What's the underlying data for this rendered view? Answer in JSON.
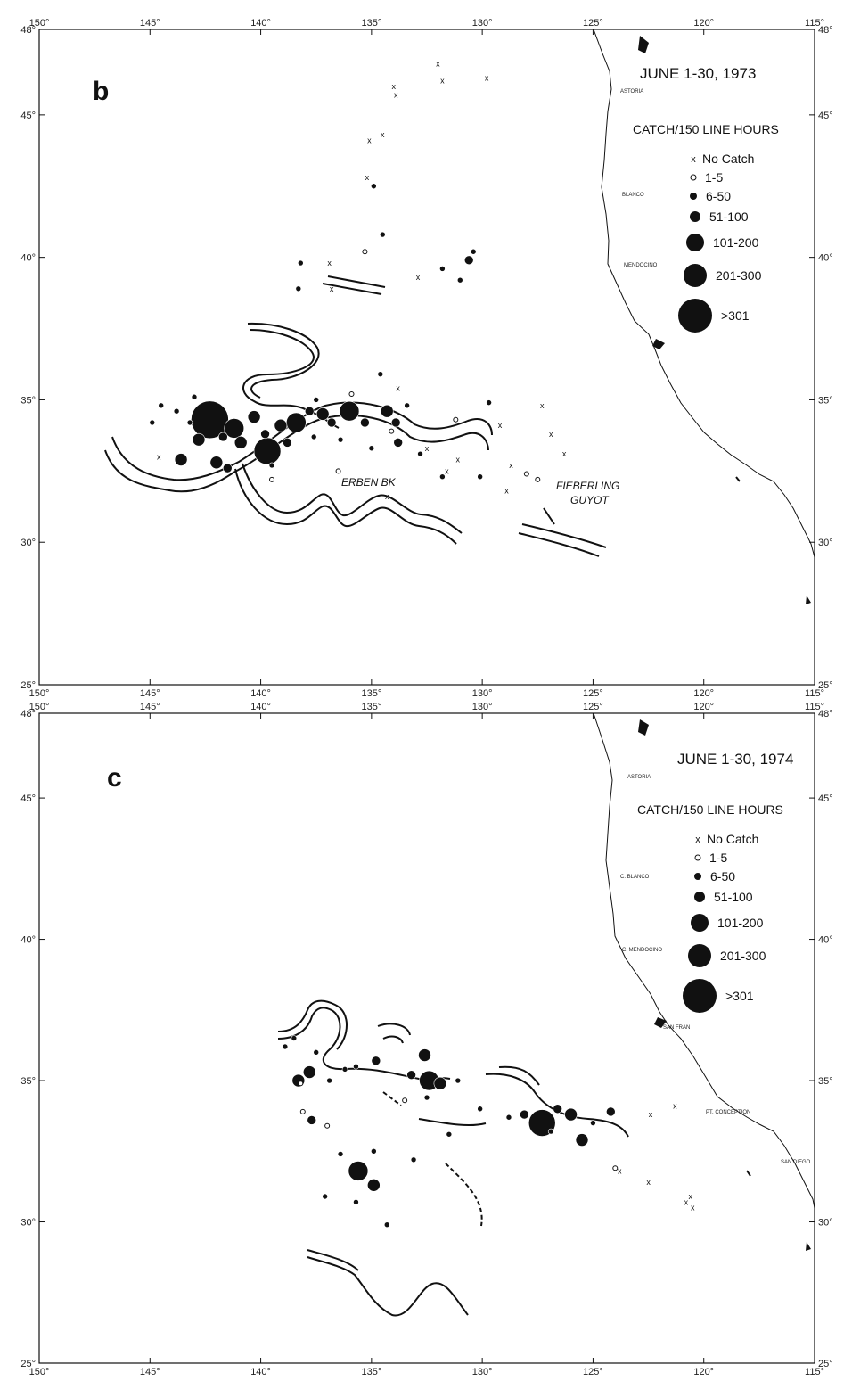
{
  "axes": {
    "lon_labels": [
      "150°",
      "145°",
      "140°",
      "135°",
      "130°",
      "125°",
      "120°",
      "115°"
    ],
    "lat_labels": [
      "25°",
      "30°",
      "35°",
      "40°",
      "45°",
      "48°"
    ]
  },
  "legend": {
    "title": "CATCH/150 LINE HOURS",
    "entries": [
      {
        "label": "No Catch",
        "symbol": "x"
      },
      {
        "label": "1-5",
        "symbol": "open-circle"
      },
      {
        "label": "6-50",
        "symbol": "dot-small"
      },
      {
        "label": "51-100",
        "symbol": "dot-medium"
      },
      {
        "label": "101-200",
        "symbol": "dot-large"
      },
      {
        "label": "201-300",
        "symbol": "dot-xlarge"
      },
      {
        "label": ">301",
        "symbol": "dot-xxlarge"
      }
    ]
  },
  "panels": [
    {
      "id": "b",
      "letter": "b",
      "title": "JUNE 1-30, 1973",
      "coast_labels": [
        "ASTORIA",
        "BLANCO",
        "MENDOCINO"
      ],
      "feature_labels": [
        "ERBEN BK",
        "FIEBERLING",
        "GUYOT"
      ],
      "catches": [
        {
          "lon": -142.3,
          "lat": 34.3,
          "size": 6
        },
        {
          "lon": -139.7,
          "lat": 33.2,
          "size": 5
        },
        {
          "lon": -141.2,
          "lat": 34.0,
          "size": 4
        },
        {
          "lon": -138.4,
          "lat": 34.2,
          "size": 4
        },
        {
          "lon": -136.0,
          "lat": 34.6,
          "size": 4
        },
        {
          "lon": -143.6,
          "lat": 32.9,
          "size": 3
        },
        {
          "lon": -142.8,
          "lat": 33.6,
          "size": 3
        },
        {
          "lon": -140.3,
          "lat": 34.4,
          "size": 3
        },
        {
          "lon": -139.1,
          "lat": 34.1,
          "size": 3
        },
        {
          "lon": -137.2,
          "lat": 34.5,
          "size": 3
        },
        {
          "lon": -134.3,
          "lat": 34.6,
          "size": 3
        },
        {
          "lon": -142.0,
          "lat": 32.8,
          "size": 3
        },
        {
          "lon": -140.9,
          "lat": 33.5,
          "size": 3
        },
        {
          "lon": -141.7,
          "lat": 33.7,
          "size": 2
        },
        {
          "lon": -139.8,
          "lat": 33.8,
          "size": 2
        },
        {
          "lon": -138.8,
          "lat": 33.5,
          "size": 2
        },
        {
          "lon": -137.8,
          "lat": 34.6,
          "size": 2
        },
        {
          "lon": -136.8,
          "lat": 34.2,
          "size": 2
        },
        {
          "lon": -135.3,
          "lat": 34.2,
          "size": 2
        },
        {
          "lon": -133.9,
          "lat": 34.2,
          "size": 2
        },
        {
          "lon": -130.6,
          "lat": 39.9,
          "size": 2
        },
        {
          "lon": -141.5,
          "lat": 32.6,
          "size": 2
        },
        {
          "lon": -133.8,
          "lat": 33.5,
          "size": 2
        },
        {
          "lon": -144.5,
          "lat": 34.8,
          "size": 1
        },
        {
          "lon": -144.9,
          "lat": 34.2,
          "size": 1
        },
        {
          "lon": -143.8,
          "lat": 34.6,
          "size": 1
        },
        {
          "lon": -143.2,
          "lat": 34.2,
          "size": 1
        },
        {
          "lon": -138.2,
          "lat": 39.8,
          "size": 1
        },
        {
          "lon": -138.3,
          "lat": 38.9,
          "size": 1
        },
        {
          "lon": -137.6,
          "lat": 33.7,
          "size": 1
        },
        {
          "lon": -136.4,
          "lat": 33.6,
          "size": 1
        },
        {
          "lon": -135.0,
          "lat": 33.3,
          "size": 1
        },
        {
          "lon": -134.6,
          "lat": 35.9,
          "size": 1
        },
        {
          "lon": -134.5,
          "lat": 40.8,
          "size": 1
        },
        {
          "lon": -134.9,
          "lat": 42.5,
          "size": 1
        },
        {
          "lon": -133.4,
          "lat": 34.8,
          "size": 1
        },
        {
          "lon": -132.8,
          "lat": 33.1,
          "size": 1
        },
        {
          "lon": -131.8,
          "lat": 39.6,
          "size": 1
        },
        {
          "lon": -131.0,
          "lat": 39.2,
          "size": 1
        },
        {
          "lon": -130.4,
          "lat": 40.2,
          "size": 1
        },
        {
          "lon": -130.1,
          "lat": 32.3,
          "size": 1
        },
        {
          "lon": -131.8,
          "lat": 32.3,
          "size": 1
        },
        {
          "lon": -129.7,
          "lat": 34.9,
          "size": 1
        },
        {
          "lon": -139.5,
          "lat": 32.7,
          "size": 1
        },
        {
          "lon": -137.5,
          "lat": 35.0,
          "size": 1
        },
        {
          "lon": -143.0,
          "lat": 35.1,
          "size": 1
        },
        {
          "lon": -136.5,
          "lat": 32.5,
          "size": 0
        },
        {
          "lon": -139.5,
          "lat": 32.2,
          "size": 0
        },
        {
          "lon": -135.9,
          "lat": 35.2,
          "size": 0
        },
        {
          "lon": -134.1,
          "lat": 33.9,
          "size": 0
        },
        {
          "lon": -135.3,
          "lat": 40.2,
          "size": 0
        },
        {
          "lon": -131.2,
          "lat": 34.3,
          "size": 0
        },
        {
          "lon": -128.0,
          "lat": 32.4,
          "size": 0
        },
        {
          "lon": -127.5,
          "lat": 32.2,
          "size": 0
        },
        {
          "lon": -132.0,
          "lat": 46.8,
          "size": -1
        },
        {
          "lon": -131.8,
          "lat": 46.2,
          "size": -1
        },
        {
          "lon": -129.8,
          "lat": 46.3,
          "size": -1
        },
        {
          "lon": -134.0,
          "lat": 46.0,
          "size": -1
        },
        {
          "lon": -133.9,
          "lat": 45.7,
          "size": -1
        },
        {
          "lon": -134.5,
          "lat": 44.3,
          "size": -1
        },
        {
          "lon": -135.1,
          "lat": 44.1,
          "size": -1
        },
        {
          "lon": -135.2,
          "lat": 42.8,
          "size": -1
        },
        {
          "lon": -136.9,
          "lat": 39.8,
          "size": -1
        },
        {
          "lon": -136.8,
          "lat": 38.9,
          "size": -1
        },
        {
          "lon": -132.9,
          "lat": 39.3,
          "size": -1
        },
        {
          "lon": -133.8,
          "lat": 35.4,
          "size": -1
        },
        {
          "lon": -131.1,
          "lat": 32.9,
          "size": -1
        },
        {
          "lon": -131.6,
          "lat": 32.5,
          "size": -1
        },
        {
          "lon": -134.3,
          "lat": 31.6,
          "size": -1
        },
        {
          "lon": -129.2,
          "lat": 34.1,
          "size": -1
        },
        {
          "lon": -128.7,
          "lat": 32.7,
          "size": -1
        },
        {
          "lon": -128.9,
          "lat": 31.8,
          "size": -1
        },
        {
          "lon": -127.3,
          "lat": 34.8,
          "size": -1
        },
        {
          "lon": -126.9,
          "lat": 33.8,
          "size": -1
        },
        {
          "lon": -126.3,
          "lat": 33.1,
          "size": -1
        },
        {
          "lon": -144.6,
          "lat": 33.0,
          "size": -1
        },
        {
          "lon": -132.5,
          "lat": 33.3,
          "size": -1
        }
      ]
    },
    {
      "id": "c",
      "letter": "c",
      "title": "JUNE 1-30, 1974",
      "coast_labels": [
        "ASTORIA",
        "C. BLANCO",
        "C. MENDOCINO",
        "SAN FRAN",
        "PT. CONCEPTION",
        "SAN DIEGO"
      ],
      "feature_labels": [],
      "catches": [
        {
          "lon": -127.3,
          "lat": 33.5,
          "size": 5
        },
        {
          "lon": -135.6,
          "lat": 31.8,
          "size": 4
        },
        {
          "lon": -132.4,
          "lat": 35.0,
          "size": 4
        },
        {
          "lon": -126.0,
          "lat": 33.8,
          "size": 3
        },
        {
          "lon": -125.5,
          "lat": 32.9,
          "size": 3
        },
        {
          "lon": -131.9,
          "lat": 34.9,
          "size": 3
        },
        {
          "lon": -138.3,
          "lat": 35.0,
          "size": 3
        },
        {
          "lon": -134.9,
          "lat": 31.3,
          "size": 3
        },
        {
          "lon": -137.8,
          "lat": 35.3,
          "size": 3
        },
        {
          "lon": -132.6,
          "lat": 35.9,
          "size": 3
        },
        {
          "lon": -134.8,
          "lat": 35.7,
          "size": 2
        },
        {
          "lon": -126.6,
          "lat": 34.0,
          "size": 2
        },
        {
          "lon": -124.2,
          "lat": 33.9,
          "size": 2
        },
        {
          "lon": -137.7,
          "lat": 33.6,
          "size": 2
        },
        {
          "lon": -133.2,
          "lat": 35.2,
          "size": 2
        },
        {
          "lon": -128.1,
          "lat": 33.8,
          "size": 2
        },
        {
          "lon": -138.5,
          "lat": 36.5,
          "size": 1
        },
        {
          "lon": -136.9,
          "lat": 35.0,
          "size": 1
        },
        {
          "lon": -135.7,
          "lat": 35.5,
          "size": 1
        },
        {
          "lon": -135.7,
          "lat": 30.7,
          "size": 1
        },
        {
          "lon": -134.3,
          "lat": 29.9,
          "size": 1
        },
        {
          "lon": -131.1,
          "lat": 35.0,
          "size": 1
        },
        {
          "lon": -130.1,
          "lat": 34.0,
          "size": 1
        },
        {
          "lon": -128.8,
          "lat": 33.7,
          "size": 1
        },
        {
          "lon": -126.9,
          "lat": 33.2,
          "size": 1
        },
        {
          "lon": -125.0,
          "lat": 33.5,
          "size": 1
        },
        {
          "lon": -138.9,
          "lat": 36.2,
          "size": 1
        },
        {
          "lon": -137.5,
          "lat": 36.0,
          "size": 1
        },
        {
          "lon": -136.2,
          "lat": 35.4,
          "size": 1
        },
        {
          "lon": -131.5,
          "lat": 33.1,
          "size": 1
        },
        {
          "lon": -133.1,
          "lat": 32.2,
          "size": 1
        },
        {
          "lon": -132.5,
          "lat": 34.4,
          "size": 1
        },
        {
          "lon": -136.4,
          "lat": 32.4,
          "size": 1
        },
        {
          "lon": -137.1,
          "lat": 30.9,
          "size": 1
        },
        {
          "lon": -134.9,
          "lat": 32.5,
          "size": 1
        },
        {
          "lon": -138.1,
          "lat": 33.9,
          "size": 0
        },
        {
          "lon": -137.0,
          "lat": 33.4,
          "size": 0
        },
        {
          "lon": -124.0,
          "lat": 31.9,
          "size": 0
        },
        {
          "lon": -138.2,
          "lat": 34.9,
          "size": 0
        },
        {
          "lon": -133.5,
          "lat": 34.3,
          "size": 0
        },
        {
          "lon": -122.4,
          "lat": 33.8,
          "size": -1
        },
        {
          "lon": -121.3,
          "lat": 34.1,
          "size": -1
        },
        {
          "lon": -123.8,
          "lat": 31.8,
          "size": -1
        },
        {
          "lon": -122.5,
          "lat": 31.4,
          "size": -1
        },
        {
          "lon": -120.6,
          "lat": 30.9,
          "size": -1
        },
        {
          "lon": -120.5,
          "lat": 30.5,
          "size": -1
        },
        {
          "lon": -120.8,
          "lat": 30.7,
          "size": -1
        }
      ]
    }
  ],
  "colors": {
    "ink": "#111111",
    "background": "#ffffff"
  }
}
